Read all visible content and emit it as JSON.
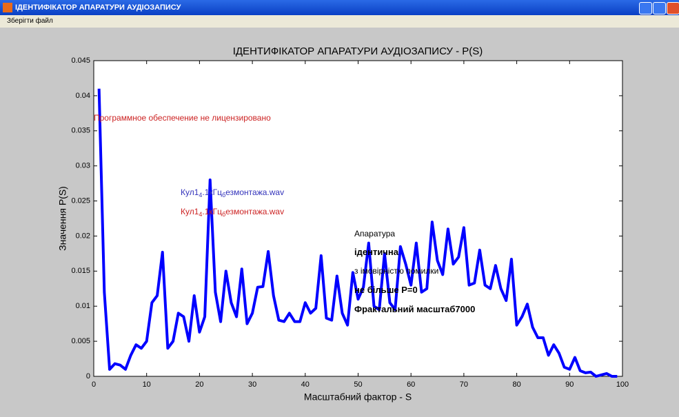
{
  "window": {
    "title": "ІДЕНТИФІКАТОР АПАРАТУРИ АУДІОЗАПИСУ"
  },
  "menu": [
    "Зберігти файл"
  ],
  "chart_data": {
    "type": "line",
    "title": "ІДЕНТИФІКАТОР АПАРАТУРИ АУДІОЗАПИСУ  - P(S)",
    "xlabel": "Масштабний фактор  - S",
    "ylabel": "Значення P(S)",
    "xlim": [
      0,
      100
    ],
    "xticks": [
      0,
      10,
      20,
      30,
      40,
      50,
      60,
      70,
      80,
      90,
      100
    ],
    "ylim": [
      0,
      0.045
    ],
    "yticks": [
      0,
      0.005,
      0.01,
      0.015,
      0.02,
      0.025,
      0.03,
      0.035,
      0.04,
      0.045
    ],
    "x": [
      1,
      2,
      3,
      4,
      5,
      6,
      7,
      8,
      9,
      10,
      11,
      12,
      13,
      14,
      15,
      16,
      17,
      18,
      19,
      20,
      21,
      22,
      23,
      24,
      25,
      26,
      27,
      28,
      29,
      30,
      31,
      32,
      33,
      34,
      35,
      36,
      37,
      38,
      39,
      40,
      41,
      42,
      43,
      44,
      45,
      46,
      47,
      48,
      49,
      50,
      51,
      52,
      53,
      54,
      55,
      56,
      57,
      58,
      59,
      60,
      61,
      62,
      63,
      64,
      65,
      66,
      67,
      68,
      69,
      70,
      71,
      72,
      73,
      74,
      75,
      76,
      77,
      78,
      79,
      80,
      81,
      82,
      83,
      84,
      85,
      86,
      87,
      88,
      89,
      90,
      91,
      92,
      93,
      94,
      95,
      96,
      97,
      98,
      99
    ],
    "series": [
      {
        "name": "P(S)",
        "color": "#0000ff",
        "values": [
          0.041,
          0.012,
          0.001,
          0.0018,
          0.0016,
          0.001,
          0.003,
          0.0045,
          0.004,
          0.005,
          0.0105,
          0.0115,
          0.0177,
          0.004,
          0.005,
          0.009,
          0.0085,
          0.005,
          0.0115,
          0.0063,
          0.0085,
          0.028,
          0.012,
          0.0078,
          0.015,
          0.0105,
          0.0085,
          0.0153,
          0.0075,
          0.009,
          0.0127,
          0.0128,
          0.0178,
          0.0115,
          0.008,
          0.0078,
          0.009,
          0.0078,
          0.0078,
          0.0105,
          0.009,
          0.0097,
          0.0172,
          0.0083,
          0.008,
          0.0143,
          0.009,
          0.0073,
          0.0148,
          0.011,
          0.0127,
          0.019,
          0.01,
          0.0095,
          0.0175,
          0.0105,
          0.0095,
          0.0185,
          0.016,
          0.013,
          0.019,
          0.012,
          0.0125,
          0.022,
          0.0165,
          0.0145,
          0.021,
          0.016,
          0.017,
          0.0212,
          0.013,
          0.0133,
          0.018,
          0.013,
          0.0125,
          0.0158,
          0.0125,
          0.0108,
          0.0167,
          0.0073,
          0.0085,
          0.0103,
          0.007,
          0.0055,
          0.0055,
          0.003,
          0.0045,
          0.0033,
          0.0013,
          0.001,
          0.0027,
          0.0008,
          0.0005,
          0.0006,
          0,
          0.0002,
          0.0004,
          0,
          0
        ]
      }
    ],
    "annotations": [
      {
        "parts": [
          "Программное обеспечение не лицензировано"
        ],
        "color": "#cc2222"
      },
      {
        "parts": [
          "Кул1",
          "4",
          ".1кГц",
          "б",
          "езмонтажа.wav"
        ],
        "color": "#3333bb"
      },
      {
        "parts": [
          "Кул1",
          "4",
          ".1кГц",
          "б",
          "езмонтажа.wav"
        ],
        "color": "#cc2222"
      },
      {
        "parts": [
          "Апаратура"
        ],
        "color": "#000000"
      },
      {
        "parts": [
          "ідентична"
        ],
        "color": "#000000"
      },
      {
        "parts": [
          "з імовірністю помилки"
        ],
        "color": "#000000"
      },
      {
        "parts": [
          "не більше P=0"
        ],
        "color": "#000000"
      },
      {
        "parts": [
          "Фрактальний масштаб7000"
        ],
        "color": "#000000"
      }
    ],
    "grid": false
  }
}
